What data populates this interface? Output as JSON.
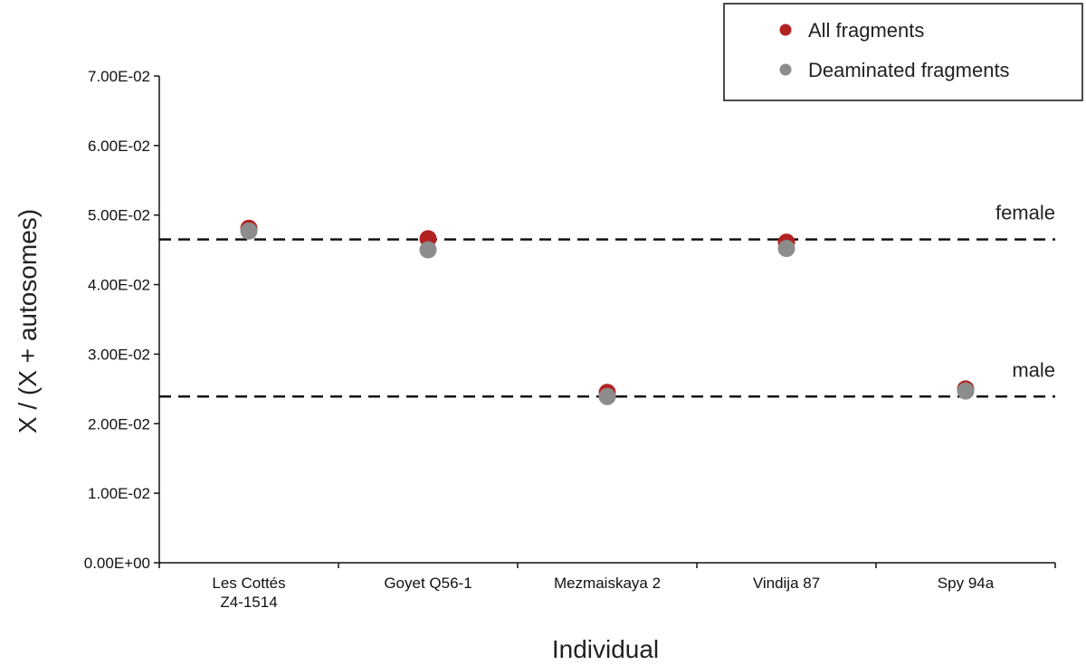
{
  "chart_data": {
    "type": "scatter",
    "categories": [
      "Les Cottés\nZ4-1514",
      "Goyet Q56-1",
      "Mezmaiskaya 2",
      "Vindija 87",
      "Spy 94a"
    ],
    "series": [
      {
        "name": "All fragments",
        "color": "#b22222",
        "values": [
          0.0481,
          0.0466,
          0.0245,
          0.0461,
          0.025
        ]
      },
      {
        "name": "Deaminated fragments",
        "color": "#8c8c8c",
        "values": [
          0.0477,
          0.045,
          0.0239,
          0.0452,
          0.0247
        ]
      }
    ],
    "reference_lines": [
      {
        "label": "female",
        "value": 0.0465
      },
      {
        "label": "male",
        "value": 0.0239
      }
    ],
    "yticks": [
      "0.00E+00",
      "1.00E-02",
      "2.00E-02",
      "3.00E-02",
      "4.00E-02",
      "5.00E-02",
      "6.00E-02",
      "7.00E-02"
    ],
    "ylim": [
      0,
      0.07
    ],
    "xlabel": "Individual",
    "ylabel": "X / (X + autosomes)",
    "legend": "top-right",
    "grid": false
  }
}
